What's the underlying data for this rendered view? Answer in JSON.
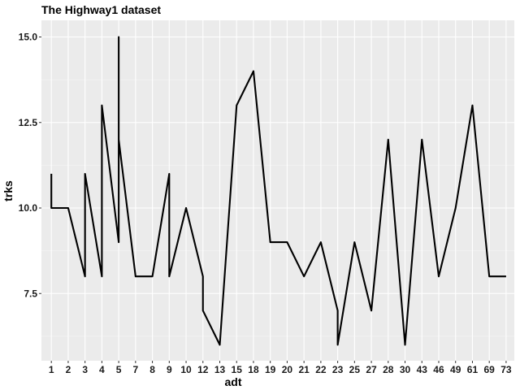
{
  "chart_data": {
    "type": "line",
    "title": "The Highway1 dataset",
    "xlabel": "adt",
    "ylabel": "trks",
    "categories": [
      "1",
      "2",
      "3",
      "4",
      "5",
      "7",
      "8",
      "9",
      "10",
      "12",
      "13",
      "15",
      "18",
      "19",
      "20",
      "21",
      "22",
      "23",
      "25",
      "27",
      "28",
      "30",
      "43",
      "46",
      "49",
      "61",
      "69",
      "73"
    ],
    "series": [
      {
        "points": [
          [
            "1",
            11
          ],
          [
            "1",
            10
          ],
          [
            "2",
            10
          ],
          [
            "3",
            8
          ],
          [
            "3",
            11
          ],
          [
            "4",
            8
          ],
          [
            "4",
            13
          ],
          [
            "5",
            9
          ],
          [
            "5",
            15
          ],
          [
            "5",
            12
          ],
          [
            "7",
            8
          ],
          [
            "8",
            8
          ],
          [
            "9",
            11
          ],
          [
            "9",
            8
          ],
          [
            "10",
            10
          ],
          [
            "12",
            8
          ],
          [
            "12",
            7
          ],
          [
            "13",
            6
          ],
          [
            "15",
            13
          ],
          [
            "18",
            14
          ],
          [
            "19",
            9
          ],
          [
            "20",
            9
          ],
          [
            "21",
            8
          ],
          [
            "22",
            9
          ],
          [
            "23",
            7
          ],
          [
            "23",
            6
          ],
          [
            "25",
            9
          ],
          [
            "27",
            7
          ],
          [
            "28",
            12
          ],
          [
            "30",
            6
          ],
          [
            "43",
            12
          ],
          [
            "46",
            8
          ],
          [
            "49",
            10
          ],
          [
            "61",
            13
          ],
          [
            "69",
            8
          ],
          [
            "73",
            8
          ]
        ]
      }
    ],
    "y_ticks": [
      "7.5",
      "10.0",
      "12.5",
      "15.0"
    ],
    "ylim": [
      5.5,
      15.5
    ],
    "grid": true,
    "colors": {
      "panel": "#ebebeb",
      "grid_major": "#ffffff",
      "line": "#000000"
    }
  }
}
